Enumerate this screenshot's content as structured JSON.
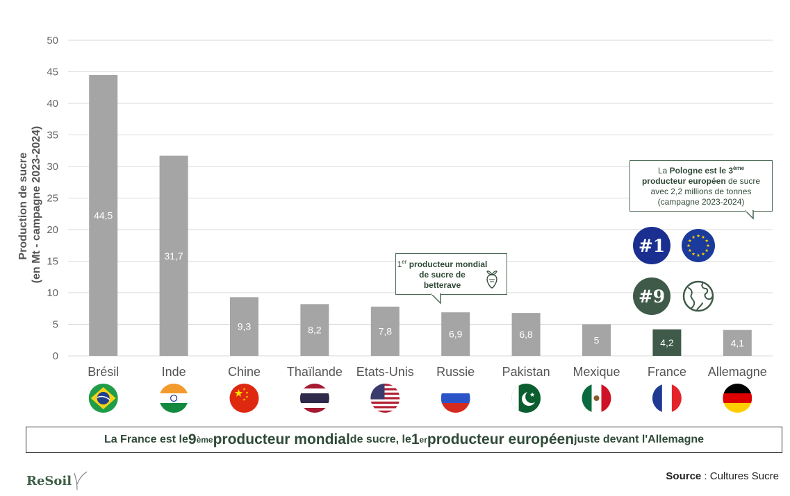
{
  "chart_data": {
    "type": "bar",
    "categories": [
      "Brésil",
      "Inde",
      "Chine",
      "Thaïlande",
      "Etats-Unis",
      "Russie",
      "Pakistan",
      "Mexique",
      "France",
      "Allemagne"
    ],
    "values": [
      44.5,
      31.7,
      9.3,
      8.2,
      7.8,
      6.9,
      6.8,
      5,
      4.2,
      4.1
    ],
    "value_labels": [
      "44,5",
      "31,7",
      "9,3",
      "8,2",
      "7,8",
      "6,9",
      "6,8",
      "5",
      "4,2",
      "4,1"
    ],
    "ylabel_line1": "Production de sucre",
    "ylabel_line2": "(en Mt - campagne 2023-2024)",
    "ylim": [
      0,
      50
    ],
    "yticks": [
      0,
      5,
      10,
      15,
      20,
      25,
      30,
      35,
      40,
      45,
      50
    ],
    "grid": true,
    "colors": {
      "default_bar": "#a5a5a5",
      "highlight_bar": "#3f5a48",
      "grid": "#d9d9d9"
    },
    "highlight_category": "France"
  },
  "flags": [
    "brazil-flag",
    "india-flag",
    "china-flag",
    "thailand-flag",
    "usa-flag",
    "russia-flag",
    "pakistan-flag",
    "mexico-flag",
    "france-flag",
    "germany-flag"
  ],
  "callout_poland": {
    "t1": "La ",
    "t2": "Pologne est le 3",
    "t2_sup": "ème",
    "t3": "producteur européen",
    "t4": " de sucre",
    "t5": "avec 2,2 millions de tonnes",
    "t6": "(campagne 2023-2024)"
  },
  "callout_russia": {
    "t1": "1",
    "t1_sup": "er",
    "t2": " producteur mondial",
    "t3": "de sucre de",
    "t4": "betterave"
  },
  "badges": {
    "europe_rank": "#1",
    "world_rank": "#9",
    "europe_color": "#1a2f8f",
    "world_color": "#3f5a48"
  },
  "banner": {
    "p1": "La France est le ",
    "p2": "9",
    "p2_sup": "ème",
    "p3": " producteur mondial",
    "p4": " de sucre, le ",
    "p5": "1",
    "p5_sup": "er",
    "p6": " producteur européen",
    "p7": " juste devant l'Allemagne"
  },
  "source": {
    "label": "Source",
    "sep": " : ",
    "value": "Cultures Sucre"
  },
  "logo": {
    "text": "ReSoil"
  }
}
